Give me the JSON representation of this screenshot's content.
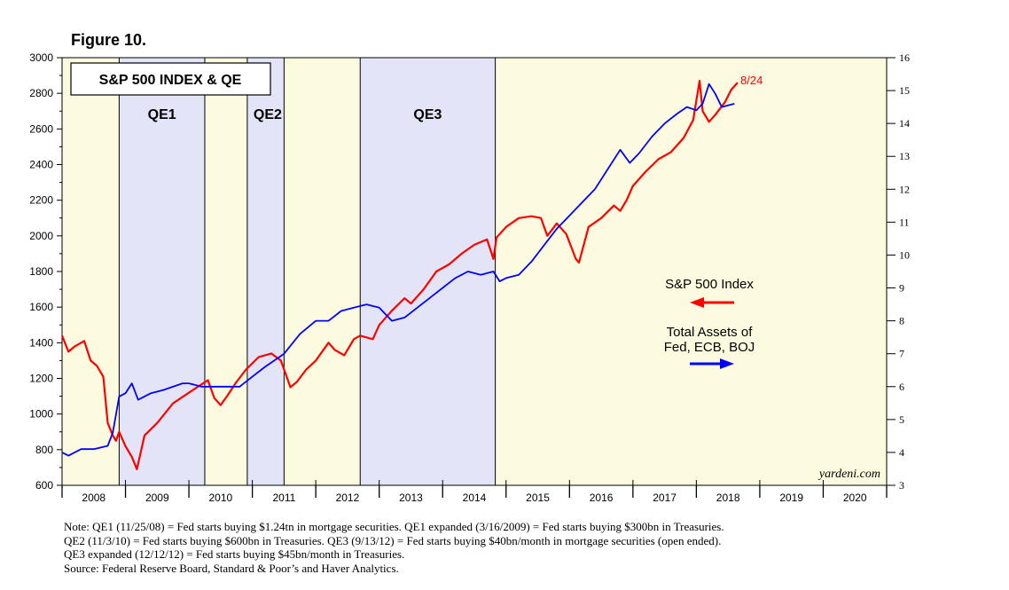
{
  "figure_label": "Figure 10.",
  "notes": [
    "Note: QE1 (11/25/08) = Fed starts buying $1.24tn in mortgage securities. QE1 expanded (3/16/2009) = Fed starts buying $300bn in Treasuries.",
    "QE2 (11/3/10) = Fed starts buying $600bn in Treasuries. QE3 (9/13/12) = Fed starts buying $40bn/month in mortgage securities (open ended).",
    "QE3 expanded (12/12/12) = Fed starts buying $45bn/month in Treasuries.",
    "Source: Federal Reserve Board, Standard & Poor’s and Haver Analytics."
  ],
  "chart_data": {
    "type": "line",
    "title": "S&P 500 INDEX & QE",
    "watermark": "yardeni.com",
    "end_label": "8/24",
    "x_range": [
      2008.0,
      2021.0
    ],
    "x_tick_labels": [
      "2008",
      "2009",
      "2010",
      "2011",
      "2012",
      "2013",
      "2014",
      "2015",
      "2016",
      "2017",
      "2018",
      "2019",
      "2020"
    ],
    "left_axis": {
      "range": [
        600,
        3000
      ],
      "ticks": [
        "600",
        "800",
        "1000",
        "1200",
        "1400",
        "1600",
        "1800",
        "2000",
        "2200",
        "2400",
        "2600",
        "2800",
        "3000"
      ]
    },
    "right_axis": {
      "range": [
        3,
        16
      ],
      "ticks": [
        "3",
        "4",
        "5",
        "6",
        "7",
        "8",
        "9",
        "10",
        "11",
        "12",
        "13",
        "14",
        "15",
        "16"
      ]
    },
    "periods": [
      {
        "label": "",
        "start": 2008.0,
        "end": 2008.9,
        "kind": "non-qe"
      },
      {
        "label": "QE1",
        "start": 2008.9,
        "end": 2010.25,
        "kind": "qe"
      },
      {
        "label": "",
        "start": 2010.25,
        "end": 2010.92,
        "kind": "non-qe"
      },
      {
        "label": "QE2",
        "start": 2010.92,
        "end": 2011.5,
        "kind": "qe"
      },
      {
        "label": "",
        "start": 2011.5,
        "end": 2012.7,
        "kind": "non-qe"
      },
      {
        "label": "QE3",
        "start": 2012.7,
        "end": 2014.83,
        "kind": "qe"
      },
      {
        "label": "",
        "start": 2014.83,
        "end": 2021.0,
        "kind": "non-qe"
      }
    ],
    "legend": [
      {
        "label": "S&P 500 Index",
        "axis": "left",
        "color": "#ff0000",
        "arrow": "left"
      },
      {
        "label_lines": [
          "Total Assets of",
          "Fed, ECB, BOJ"
        ],
        "axis": "right",
        "color": "#0000ff",
        "arrow": "right"
      }
    ],
    "series": [
      {
        "name": "S&P 500 Index",
        "axis": "left",
        "color": "#ff0000",
        "x": [
          2008.0,
          2008.1,
          2008.2,
          2008.35,
          2008.45,
          2008.55,
          2008.65,
          2008.72,
          2008.8,
          2008.85,
          2008.9,
          2009.0,
          2009.1,
          2009.18,
          2009.3,
          2009.5,
          2009.75,
          2010.0,
          2010.3,
          2010.4,
          2010.5,
          2010.6,
          2010.75,
          2010.9,
          2011.1,
          2011.3,
          2011.45,
          2011.55,
          2011.6,
          2011.7,
          2011.85,
          2012.0,
          2012.2,
          2012.3,
          2012.45,
          2012.6,
          2012.7,
          2012.9,
          2013.0,
          2013.2,
          2013.4,
          2013.5,
          2013.7,
          2013.9,
          2014.1,
          2014.3,
          2014.5,
          2014.7,
          2014.8,
          2014.85,
          2015.0,
          2015.2,
          2015.4,
          2015.55,
          2015.65,
          2015.8,
          2015.95,
          2016.1,
          2016.15,
          2016.3,
          2016.5,
          2016.7,
          2016.8,
          2016.9,
          2017.0,
          2017.2,
          2017.4,
          2017.6,
          2017.8,
          2017.95,
          2018.05,
          2018.1,
          2018.2,
          2018.3,
          2018.45,
          2018.55,
          2018.65
        ],
        "values": [
          1440,
          1350,
          1380,
          1410,
          1300,
          1270,
          1210,
          950,
          880,
          850,
          900,
          820,
          760,
          690,
          880,
          950,
          1060,
          1120,
          1190,
          1090,
          1050,
          1100,
          1180,
          1250,
          1320,
          1340,
          1300,
          1200,
          1150,
          1180,
          1250,
          1300,
          1400,
          1360,
          1330,
          1420,
          1440,
          1420,
          1500,
          1580,
          1650,
          1620,
          1700,
          1800,
          1840,
          1900,
          1950,
          1980,
          1870,
          1990,
          2050,
          2100,
          2110,
          2100,
          2000,
          2070,
          2010,
          1870,
          1850,
          2050,
          2100,
          2170,
          2140,
          2200,
          2280,
          2360,
          2430,
          2470,
          2550,
          2650,
          2870,
          2700,
          2640,
          2680,
          2750,
          2820,
          2860
        ]
      },
      {
        "name": "Total Assets of Fed, ECB, BOJ",
        "axis": "right",
        "color": "#0000ff",
        "x": [
          2008.0,
          2008.1,
          2008.3,
          2008.5,
          2008.72,
          2008.8,
          2008.9,
          2009.0,
          2009.1,
          2009.2,
          2009.4,
          2009.6,
          2009.9,
          2010.0,
          2010.2,
          2010.5,
          2010.8,
          2011.0,
          2011.2,
          2011.5,
          2011.75,
          2012.0,
          2012.2,
          2012.4,
          2012.6,
          2012.8,
          2013.0,
          2013.2,
          2013.4,
          2013.6,
          2013.8,
          2014.0,
          2014.2,
          2014.4,
          2014.6,
          2014.8,
          2014.9,
          2015.0,
          2015.2,
          2015.4,
          2015.6,
          2015.8,
          2016.0,
          2016.2,
          2016.4,
          2016.6,
          2016.8,
          2016.95,
          2017.1,
          2017.3,
          2017.5,
          2017.7,
          2017.85,
          2018.0,
          2018.1,
          2018.2,
          2018.3,
          2018.4,
          2018.6
        ],
        "values": [
          4.0,
          3.9,
          4.1,
          4.1,
          4.2,
          4.6,
          5.7,
          5.8,
          6.1,
          5.6,
          5.8,
          5.9,
          6.1,
          6.1,
          6.0,
          6.0,
          6.0,
          6.3,
          6.6,
          7.0,
          7.6,
          8.0,
          8.0,
          8.3,
          8.4,
          8.5,
          8.4,
          8.0,
          8.1,
          8.4,
          8.7,
          9.0,
          9.3,
          9.5,
          9.4,
          9.5,
          9.2,
          9.3,
          9.4,
          9.8,
          10.3,
          10.8,
          11.2,
          11.6,
          12.0,
          12.6,
          13.2,
          12.8,
          13.1,
          13.6,
          14.0,
          14.3,
          14.5,
          14.4,
          14.6,
          15.2,
          14.9,
          14.5,
          14.6
        ]
      }
    ]
  }
}
